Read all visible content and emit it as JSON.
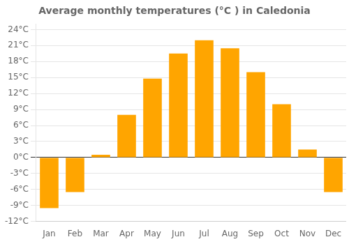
{
  "chart_data": {
    "type": "bar",
    "title": "Average monthly temperatures (°C ) in Caledonia",
    "categories": [
      "Jan",
      "Feb",
      "Mar",
      "Apr",
      "May",
      "Jun",
      "Jul",
      "Aug",
      "Sep",
      "Oct",
      "Nov",
      "Dec"
    ],
    "values": [
      -9.5,
      -6.5,
      0.5,
      8.0,
      14.8,
      19.5,
      22.0,
      20.5,
      16.0,
      10.0,
      1.5,
      -6.5
    ],
    "color": "#FFA500",
    "ylim": [
      -12,
      25
    ],
    "yticks": [
      {
        "value": -12,
        "label": "-12°C"
      },
      {
        "value": -9,
        "label": "-9°C"
      },
      {
        "value": -6,
        "label": "-6°C"
      },
      {
        "value": -3,
        "label": "-3°C"
      },
      {
        "value": 0,
        "label": "0°C"
      },
      {
        "value": 3,
        "label": "3°C"
      },
      {
        "value": 6,
        "label": "6°C"
      },
      {
        "value": 9,
        "label": "9°C"
      },
      {
        "value": 12,
        "label": "12°C"
      },
      {
        "value": 15,
        "label": "15°C"
      },
      {
        "value": 18,
        "label": "18°C"
      },
      {
        "value": 21,
        "label": "21°C"
      },
      {
        "value": 24,
        "label": "24°C"
      }
    ],
    "grid": true
  }
}
